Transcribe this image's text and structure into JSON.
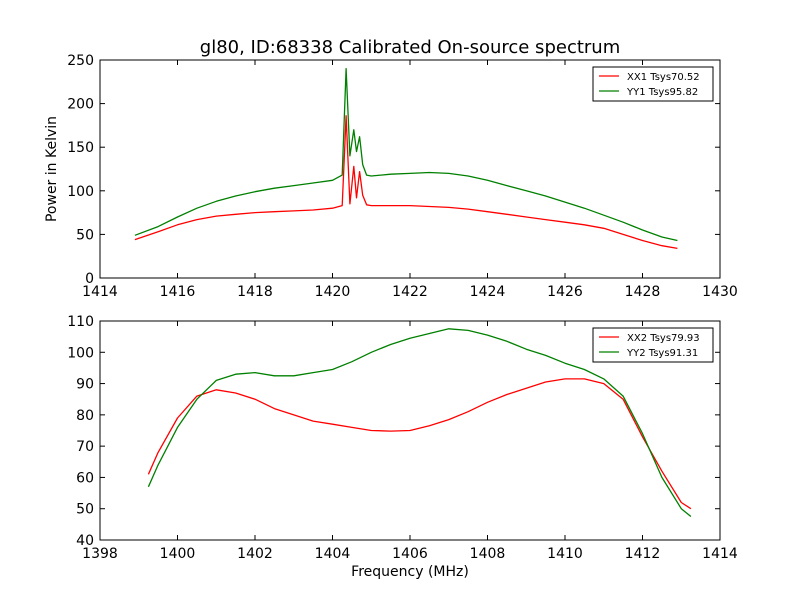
{
  "chart_data": [
    {
      "type": "line",
      "title": "gl80, ID:68338 Calibrated On-source spectrum",
      "xlabel": "",
      "ylabel": "Power in Kelvin",
      "xlim": [
        1414,
        1430
      ],
      "ylim": [
        0,
        250
      ],
      "xticks": [
        "1414",
        "1416",
        "1418",
        "1420",
        "1422",
        "1424",
        "1426",
        "1428",
        "1430"
      ],
      "yticks": [
        "0",
        "50",
        "100",
        "150",
        "200",
        "250"
      ],
      "grid": false,
      "legend_position": "top-right",
      "series": [
        {
          "name": "XX1 Tsys70.52",
          "color": "#ff0000",
          "x": [
            1414.9,
            1415.5,
            1416.0,
            1416.5,
            1417.0,
            1417.5,
            1418.0,
            1418.5,
            1419.0,
            1419.5,
            1420.0,
            1420.25,
            1420.35,
            1420.45,
            1420.55,
            1420.62,
            1420.7,
            1420.78,
            1420.88,
            1421.0,
            1421.5,
            1422.0,
            1422.5,
            1423.0,
            1423.5,
            1424.0,
            1424.5,
            1425.0,
            1425.5,
            1426.0,
            1426.5,
            1427.0,
            1427.5,
            1428.0,
            1428.5,
            1428.9
          ],
          "values": [
            44,
            53,
            61,
            67,
            71,
            73,
            75,
            76,
            77,
            78,
            80,
            83,
            186,
            85,
            128,
            92,
            122,
            95,
            84,
            83,
            83,
            83,
            82,
            81,
            79,
            76,
            73,
            70,
            67,
            64,
            61,
            57,
            50,
            43,
            37,
            34
          ]
        },
        {
          "name": "YY1 Tsys95.82",
          "color": "#008000",
          "x": [
            1414.9,
            1415.5,
            1416.0,
            1416.5,
            1417.0,
            1417.5,
            1418.0,
            1418.5,
            1419.0,
            1419.5,
            1420.0,
            1420.25,
            1420.35,
            1420.45,
            1420.55,
            1420.62,
            1420.7,
            1420.78,
            1420.88,
            1421.0,
            1421.5,
            1422.0,
            1422.5,
            1423.0,
            1423.5,
            1424.0,
            1424.5,
            1425.0,
            1425.5,
            1426.0,
            1426.5,
            1427.0,
            1427.5,
            1428.0,
            1428.5,
            1428.9
          ],
          "values": [
            49,
            59,
            70,
            80,
            88,
            94,
            99,
            103,
            106,
            109,
            112,
            118,
            240,
            140,
            170,
            145,
            162,
            130,
            118,
            117,
            119,
            120,
            121,
            120,
            117,
            112,
            106,
            100,
            94,
            87,
            80,
            72,
            64,
            55,
            47,
            43
          ]
        }
      ]
    },
    {
      "type": "line",
      "title": "",
      "xlabel": "Frequency (MHz)",
      "ylabel": "",
      "xlim": [
        1398,
        1414
      ],
      "ylim": [
        40,
        110
      ],
      "xticks": [
        "1398",
        "1400",
        "1402",
        "1404",
        "1406",
        "1408",
        "1410",
        "1412",
        "1414"
      ],
      "yticks": [
        "40",
        "50",
        "60",
        "70",
        "80",
        "90",
        "100",
        "110"
      ],
      "grid": false,
      "legend_position": "top-right",
      "series": [
        {
          "name": "XX2 Tsys79.93",
          "color": "#ff0000",
          "x": [
            1399.25,
            1399.5,
            1400.0,
            1400.5,
            1401.0,
            1401.5,
            1402.0,
            1402.5,
            1403.0,
            1403.5,
            1404.0,
            1404.5,
            1405.0,
            1405.5,
            1406.0,
            1406.5,
            1407.0,
            1407.5,
            1408.0,
            1408.5,
            1409.0,
            1409.5,
            1410.0,
            1410.5,
            1411.0,
            1411.5,
            1412.0,
            1412.5,
            1413.0,
            1413.25
          ],
          "values": [
            61,
            68,
            79,
            86,
            88,
            87,
            85,
            82,
            80,
            78,
            77,
            76,
            75,
            74.8,
            75,
            76.5,
            78.5,
            81,
            84,
            86.5,
            88.5,
            90.5,
            91.5,
            91.5,
            90,
            85,
            73,
            62,
            52,
            50
          ]
        },
        {
          "name": "YY2 Tsys91.31",
          "color": "#008000",
          "x": [
            1399.25,
            1399.5,
            1400.0,
            1400.5,
            1401.0,
            1401.5,
            1402.0,
            1402.5,
            1403.0,
            1403.5,
            1404.0,
            1404.5,
            1405.0,
            1405.5,
            1406.0,
            1406.5,
            1407.0,
            1407.5,
            1408.0,
            1408.5,
            1409.0,
            1409.5,
            1410.0,
            1410.5,
            1411.0,
            1411.5,
            1412.0,
            1412.5,
            1413.0,
            1413.25
          ],
          "values": [
            57,
            64,
            76,
            85,
            91,
            93,
            93.5,
            92.5,
            92.5,
            93.5,
            94.5,
            97,
            100,
            102.5,
            104.5,
            106,
            107.5,
            107,
            105.5,
            103.5,
            101,
            99,
            96.5,
            94.5,
            91.5,
            86,
            74,
            60,
            50,
            47.5
          ]
        }
      ]
    }
  ]
}
